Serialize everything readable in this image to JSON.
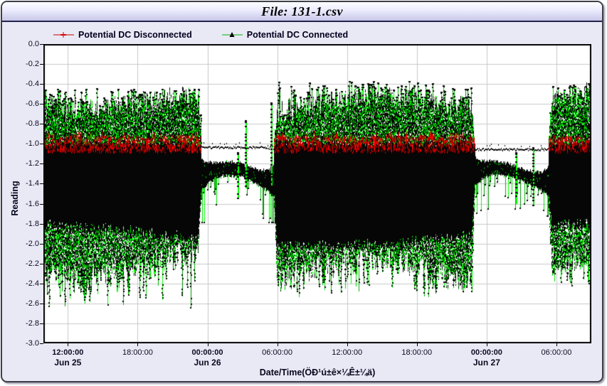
{
  "chart_data": {
    "type": "line",
    "title": "File: 131-1.csv",
    "xlabel": "Date/Time(ÖÐ¹ú±ê×¼Ê±¼ä)",
    "ylabel": "Reading",
    "ylim": [
      -3.0,
      0.0
    ],
    "y_tick_step": 0.2,
    "y_ticks": [
      "0.0",
      "-0.2",
      "-0.4",
      "-0.6",
      "-0.8",
      "-1.0",
      "-1.2",
      "-1.4",
      "-1.6",
      "-1.8",
      "-2.0",
      "-2.2",
      "-2.4",
      "-2.6",
      "-2.8",
      "-3.0"
    ],
    "grid": true,
    "legend_position": "top-left",
    "x_axis": {
      "start_hour": 9.9,
      "end_hour": 57.0,
      "ticks": [
        {
          "hour": 12,
          "time": "12:00:00",
          "date": "Jun 25",
          "bold": true
        },
        {
          "hour": 18,
          "time": "18:00:00",
          "date": "",
          "bold": false
        },
        {
          "hour": 24,
          "time": "00:00:00",
          "date": "Jun 26",
          "bold": true
        },
        {
          "hour": 30,
          "time": "06:00:00",
          "date": "",
          "bold": false
        },
        {
          "hour": 36,
          "time": "12:00:00",
          "date": "",
          "bold": false
        },
        {
          "hour": 42,
          "time": "18:00:00",
          "date": "",
          "bold": false
        },
        {
          "hour": 48,
          "time": "00:00:00",
          "date": "Jun 27",
          "bold": true
        },
        {
          "hour": 54,
          "time": "06:00:00",
          "date": "",
          "bold": false
        }
      ]
    },
    "series": [
      {
        "name": "Potential DC Disconnected",
        "line_color": "#c00000",
        "marker": "plus",
        "marker_color": "#ff0000"
      },
      {
        "name": "Potential DC Connected",
        "line_color": "#00cc00",
        "marker": "triangle",
        "marker_color": "#000000"
      }
    ],
    "colors": {
      "plot_bg": "#ffffff",
      "grid": "#c9c9cd",
      "axis": "#000000",
      "panel_bg": "#e9e9f6",
      "black_mass": "#060606",
      "greens": [
        "#00ff00",
        "#00e000",
        "#00b400",
        "#009000"
      ],
      "reds": [
        "#ff0000",
        "#e00000",
        "#b00000",
        "#8b0000"
      ]
    },
    "segments": [
      {
        "mode": "active",
        "start": 9.9,
        "end": 23.5,
        "tex_top": -0.6,
        "core_top": -1.0,
        "core_bottom": -1.9,
        "tex_bottom": -2.2,
        "spike_top": -0.45,
        "spike_bottom": -2.65,
        "red_level": -1.02
      },
      {
        "mode": "quiet",
        "start": 23.5,
        "end": 29.7,
        "flat_level": -1.03,
        "band_center": -1.33,
        "band_half": 0.06,
        "spike_bottom": -1.78
      },
      {
        "mode": "active",
        "start": 29.7,
        "end": 47.0,
        "tex_top": -0.55,
        "core_top": -1.0,
        "core_bottom": -1.93,
        "tex_bottom": -2.25,
        "spike_top": -0.38,
        "spike_bottom": -2.55,
        "red_level": -1.02
      },
      {
        "mode": "quiet",
        "start": 47.0,
        "end": 53.3,
        "flat_level": -1.05,
        "band_center": -1.32,
        "band_half": 0.055,
        "spike_bottom": -1.72
      },
      {
        "mode": "active",
        "start": 53.3,
        "end": 57.0,
        "tex_top": -0.55,
        "core_top": -1.0,
        "core_bottom": -1.9,
        "tex_bottom": -2.15,
        "spike_top": -0.4,
        "spike_bottom": -2.45,
        "red_level": -1.02
      }
    ],
    "quiet_events": [
      {
        "hour": 26.6,
        "y_from": -1.1,
        "y_to": -1.55
      },
      {
        "hour": 27.3,
        "y_from": -0.78,
        "y_to": -1.45
      },
      {
        "hour": 29.5,
        "y_from": -0.6,
        "y_to": -1.42
      },
      {
        "hour": 50.5,
        "y_from": -1.1,
        "y_to": -1.6
      },
      {
        "hour": 52.0,
        "y_from": -1.05,
        "y_to": -1.62
      }
    ],
    "seed": 1337
  }
}
